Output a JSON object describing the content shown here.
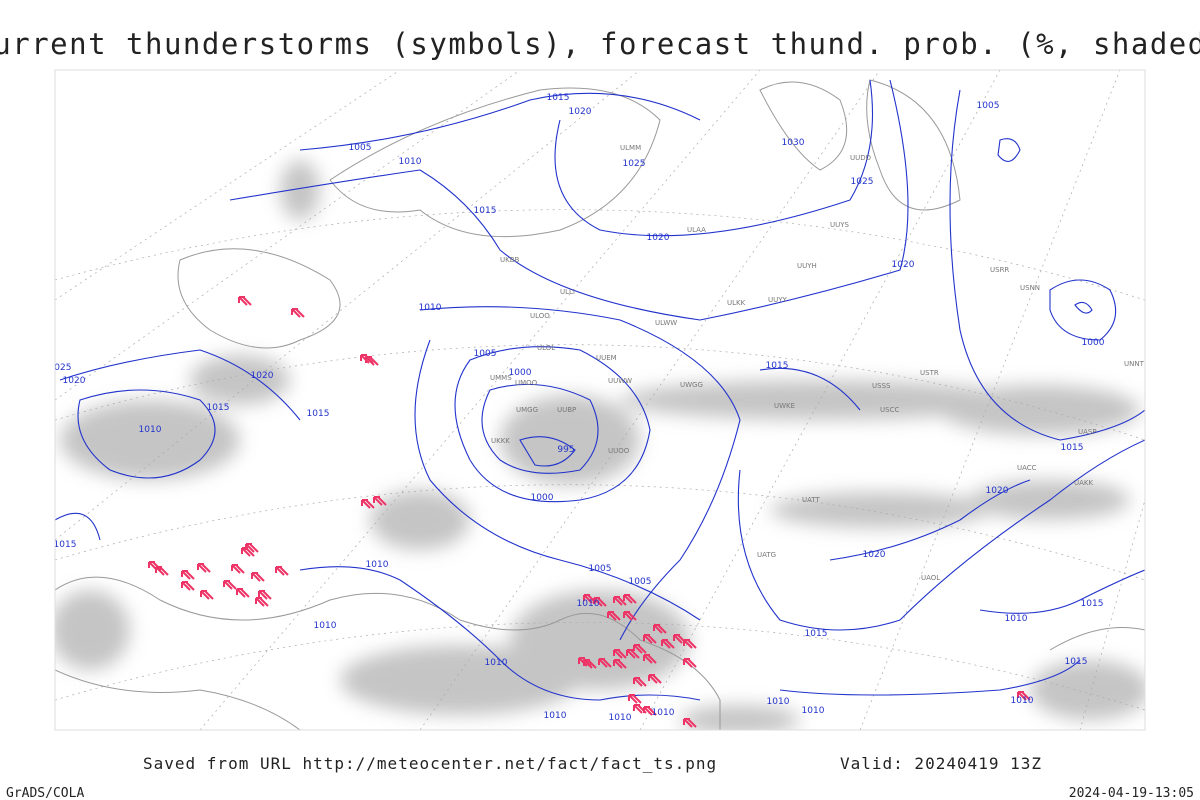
{
  "header": {
    "title": "Current thunderstorms (symbols), forecast thund. prob. (%, shaded)"
  },
  "footer": {
    "saved": "Saved from URL http://meteocenter.net/fact/fact_ts.png",
    "valid": "Valid: 20240419 13Z",
    "credit": "GrADS/COLA",
    "timestamp": "2024-04-19-13:05"
  },
  "isobar_labels": [
    "1015",
    "1020",
    "1005",
    "1010",
    "1025",
    "1030",
    "1025",
    "1005",
    "1015",
    "1020",
    "1020",
    "1010",
    "1005",
    "1000",
    "1015",
    "1020",
    "1015",
    "1015",
    "1010",
    "1000",
    "995",
    "1000",
    "1020",
    "1015",
    "1020",
    "1015",
    "1010",
    "1005",
    "1005",
    "1010",
    "1015",
    "1010",
    "1010",
    "1010",
    "1010",
    "1010",
    "1010",
    "1010",
    "1010",
    "1015",
    "1015",
    "1010",
    "1020",
    "1025"
  ],
  "station_labels": [
    "ULOL",
    "UUEM",
    "UMMS",
    "UMOO",
    "UUBP",
    "UMGG",
    "UUOO",
    "UKKK",
    "UUWW",
    "UWGG",
    "UWKE",
    "USCC",
    "USSS",
    "USTR",
    "UATT",
    "UATG",
    "UAOL",
    "UACC",
    "UASP",
    "UAKK",
    "ULLI",
    "ULOO",
    "ULWW",
    "ULAA",
    "UUYY",
    "ULKK",
    "UUYH",
    "UUYS",
    "USRR",
    "USNN",
    "UNNT",
    "ULMM",
    "UUDD",
    "UKBB"
  ]
}
